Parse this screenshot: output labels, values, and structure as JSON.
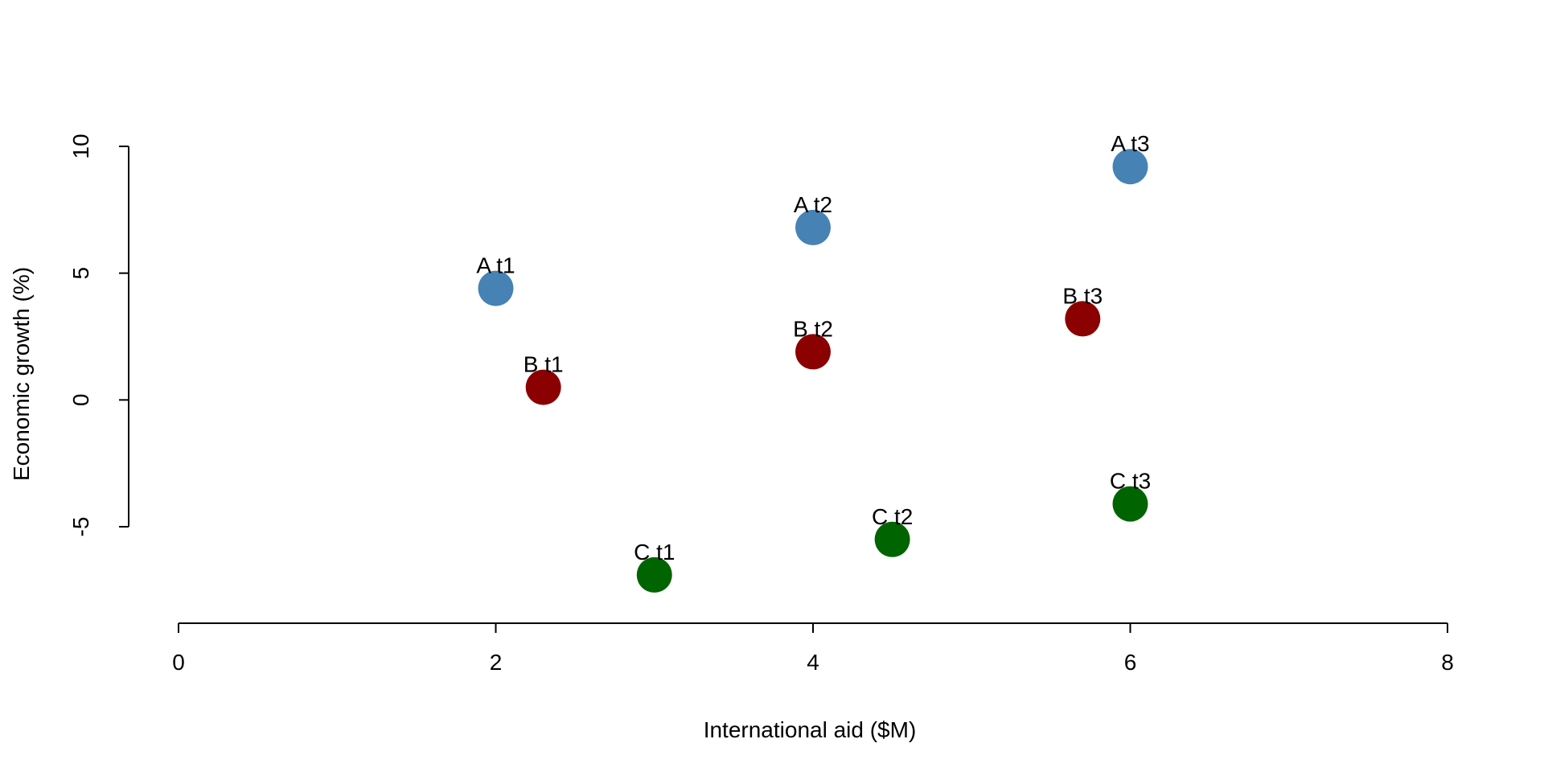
{
  "chart_data": {
    "type": "scatter",
    "title": "",
    "xlabel": "International aid ($M)",
    "ylabel": "Economic growth (%)",
    "xlim": [
      0,
      8
    ],
    "ylim": [
      -5,
      10
    ],
    "x_ticks": [
      "0",
      "2",
      "4",
      "6",
      "8"
    ],
    "y_ticks": [
      "-5",
      "0",
      "5",
      "10"
    ],
    "grid": false,
    "legend": "none",
    "series": [
      {
        "color": "#4682B4",
        "points": [
          {
            "label": "A t1",
            "x": 2.0,
            "y": 4.4
          },
          {
            "label": "A t2",
            "x": 4.0,
            "y": 6.8
          },
          {
            "label": "A t3",
            "x": 6.0,
            "y": 9.2
          }
        ]
      },
      {
        "color": "#8B0000",
        "points": [
          {
            "label": "B t1",
            "x": 2.3,
            "y": 0.5
          },
          {
            "label": "B t2",
            "x": 4.0,
            "y": 1.9
          },
          {
            "label": "B t3",
            "x": 5.7,
            "y": 3.2
          }
        ]
      },
      {
        "color": "#006400",
        "points": [
          {
            "label": "C t1",
            "x": 3.0,
            "y": -6.9
          },
          {
            "label": "C t2",
            "x": 4.5,
            "y": -5.5
          },
          {
            "label": "C t3",
            "x": 6.0,
            "y": -4.1
          }
        ]
      }
    ]
  }
}
